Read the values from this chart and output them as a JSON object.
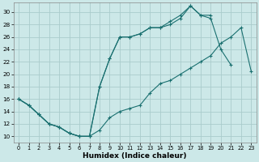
{
  "xlabel": "Humidex (Indice chaleur)",
  "bg_color": "#cce8e8",
  "line_color": "#1a7070",
  "grid_color": "#aacccc",
  "xlim": [
    -0.5,
    23.5
  ],
  "ylim": [
    9,
    31.5
  ],
  "xticks": [
    0,
    1,
    2,
    3,
    4,
    5,
    6,
    7,
    8,
    9,
    10,
    11,
    12,
    13,
    14,
    15,
    16,
    17,
    18,
    19,
    20,
    21,
    22,
    23
  ],
  "yticks": [
    10,
    12,
    14,
    16,
    18,
    20,
    22,
    24,
    26,
    28,
    30
  ],
  "line1_x": [
    0,
    1,
    2,
    3,
    4,
    5,
    6,
    7,
    8,
    9,
    10,
    11,
    12,
    13,
    14,
    15,
    16,
    17,
    18,
    19,
    20,
    21,
    22,
    23
  ],
  "line1_y": [
    16,
    15,
    13.5,
    12,
    11.5,
    10.5,
    10,
    10,
    11,
    13,
    14,
    14.5,
    15,
    17,
    18.5,
    19,
    20,
    21,
    22,
    23,
    25,
    26,
    27.5,
    20.5
  ],
  "line2_x": [
    0,
    1,
    2,
    3,
    4,
    5,
    6,
    7,
    8,
    9,
    10,
    11,
    12,
    13,
    14,
    15,
    16,
    17,
    18,
    19,
    20,
    21
  ],
  "line2_y": [
    16,
    15,
    13.5,
    12,
    11.5,
    10.5,
    10,
    10,
    18,
    22.5,
    26,
    26,
    26.5,
    27.5,
    27.5,
    28,
    29,
    31,
    29.5,
    29,
    24,
    21.5
  ],
  "line3_x": [
    0,
    1,
    2,
    3,
    4,
    5,
    6,
    7,
    8,
    9,
    10,
    11,
    12,
    13,
    14,
    15,
    16,
    17,
    18,
    19
  ],
  "line3_y": [
    16,
    15,
    13.5,
    12,
    11.5,
    10.5,
    10,
    10,
    18,
    22.5,
    26,
    26,
    26.5,
    27.5,
    27.5,
    28.5,
    29.5,
    31,
    29.5,
    29.5
  ]
}
